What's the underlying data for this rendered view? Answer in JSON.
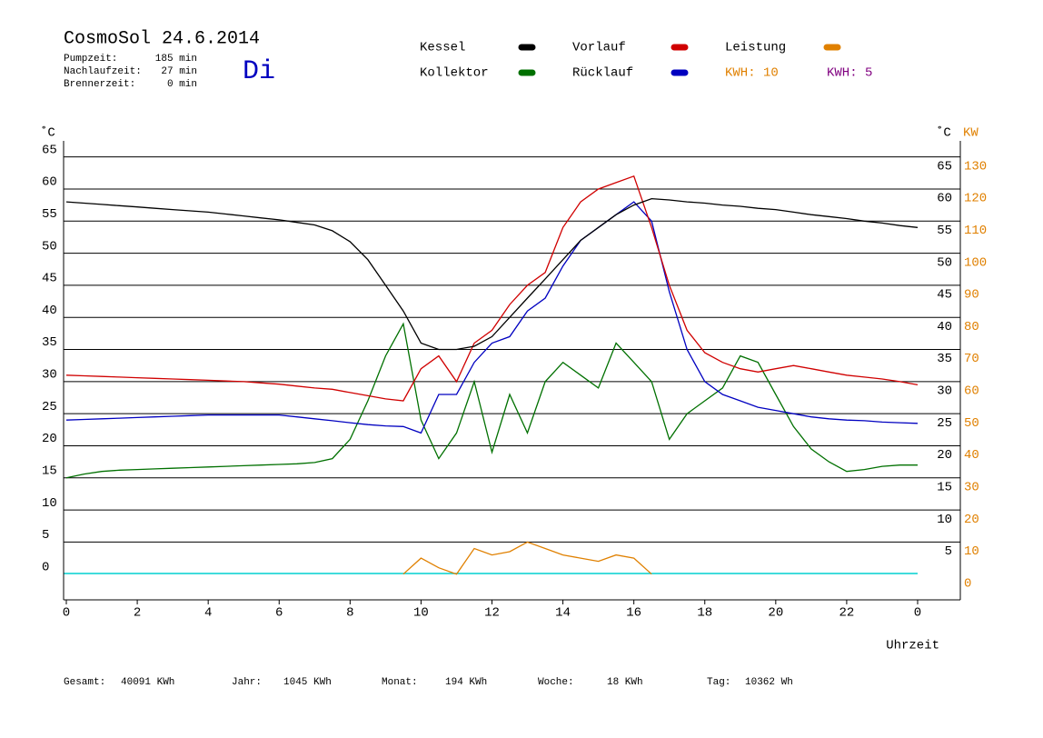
{
  "chart_data": {
    "type": "line",
    "title": "CosmoSol 24.6.2014",
    "ylabel": "˚C",
    "y2label": "KW",
    "y2label_unit": "˚C",
    "xlabel": "Uhrzeit",
    "annotations": [
      {
        "text": "KWH: 10",
        "color": "#e08000"
      },
      {
        "text": "KWH: 5",
        "color": "#800080"
      }
    ],
    "x": [
      0,
      0.5,
      1,
      1.5,
      2,
      2.5,
      3,
      3.5,
      4,
      4.5,
      5,
      5.5,
      6,
      6.5,
      7,
      7.5,
      8,
      8.5,
      9,
      9.5,
      10,
      10.5,
      11,
      11.5,
      12,
      12.5,
      13,
      13.5,
      14,
      14.5,
      15,
      15.5,
      16,
      16.5,
      17,
      17.5,
      18,
      18.5,
      19,
      19.5,
      20,
      20.5,
      21,
      21.5,
      22,
      22.5,
      23,
      23.5,
      24
    ],
    "series": [
      {
        "name": "Kessel",
        "color": "#000000",
        "values": [
          58,
          57.8,
          57.6,
          57.4,
          57.2,
          57,
          56.8,
          56.6,
          56.4,
          56.1,
          55.8,
          55.5,
          55.2,
          54.8,
          54.4,
          53.5,
          51.8,
          49,
          45,
          41,
          36,
          35,
          35,
          35.5,
          37,
          40,
          43,
          46,
          49,
          52,
          54,
          56,
          57.5,
          58.5,
          58.3,
          58,
          57.8,
          57.5,
          57.3,
          57,
          56.8,
          56.4,
          56,
          55.7,
          55.4,
          55,
          54.7,
          54.3,
          54
        ]
      },
      {
        "name": "Kollektor",
        "color": "#007000",
        "values": [
          15,
          15.6,
          16,
          16.2,
          16.3,
          16.4,
          16.5,
          16.6,
          16.7,
          16.8,
          16.9,
          17,
          17.1,
          17.2,
          17.4,
          18,
          21,
          27,
          34,
          39,
          24,
          18,
          22,
          30,
          19,
          28,
          22,
          30,
          33,
          31,
          29,
          36,
          33,
          30,
          21,
          25,
          27,
          29,
          34,
          33,
          28,
          23,
          19.5,
          17.5,
          16,
          16.3,
          16.8,
          17,
          17
        ]
      },
      {
        "name": "Vorlauf",
        "color": "#d00000",
        "values": [
          31,
          30.9,
          30.8,
          30.7,
          30.6,
          30.5,
          30.4,
          30.3,
          30.2,
          30.1,
          30,
          29.8,
          29.6,
          29.3,
          29,
          28.8,
          28.3,
          27.8,
          27.3,
          27,
          32,
          34,
          30,
          36,
          38,
          42,
          45,
          47,
          54,
          58,
          60,
          61,
          62,
          54,
          45,
          38,
          34.5,
          33,
          32,
          31.5,
          32,
          32.5,
          32,
          31.5,
          31,
          30.7,
          30.4,
          30,
          29.5
        ]
      },
      {
        "name": "Rücklauf",
        "color": "#0000c0",
        "values": [
          24,
          24.1,
          24.2,
          24.3,
          24.4,
          24.5,
          24.6,
          24.7,
          24.8,
          24.8,
          24.8,
          24.8,
          24.8,
          24.5,
          24.2,
          23.9,
          23.6,
          23.3,
          23.1,
          23,
          22,
          28,
          28,
          33,
          36,
          37,
          41,
          43,
          48,
          52,
          54,
          56,
          58,
          55,
          44,
          35,
          30,
          28,
          27,
          26,
          25.5,
          25,
          24.5,
          24.2,
          24,
          23.9,
          23.7,
          23.6,
          23.5
        ]
      },
      {
        "name": "Leistung",
        "color": "#e08000",
        "axis": "y2",
        "values": [
          null,
          null,
          null,
          null,
          null,
          null,
          null,
          null,
          null,
          null,
          null,
          null,
          null,
          null,
          null,
          null,
          null,
          null,
          null,
          0,
          5,
          2,
          0,
          8,
          6,
          7,
          10,
          8,
          6,
          5,
          4,
          6,
          5,
          0,
          null,
          null,
          null,
          null,
          null,
          null,
          null,
          null,
          null,
          null,
          null,
          null,
          null,
          null,
          null
        ]
      }
    ],
    "xlim": [
      0,
      24
    ],
    "xticks": [
      0,
      2,
      4,
      6,
      8,
      10,
      12,
      14,
      16,
      18,
      20,
      22,
      {
        "value": 24,
        "label": "0"
      }
    ],
    "ylim": [
      -4,
      67.5
    ],
    "yticks": [
      0,
      5,
      10,
      15,
      20,
      25,
      30,
      35,
      40,
      45,
      50,
      55,
      60,
      65
    ],
    "y2lim": [
      -8,
      135
    ],
    "y2ticks": [
      0,
      10,
      20,
      30,
      40,
      50,
      60,
      70,
      80,
      90,
      100,
      110,
      120,
      130
    ],
    "grid": true
  },
  "day": "Di",
  "info": [
    {
      "label": "Pumpzeit:",
      "value": "185 min"
    },
    {
      "label": "Nachlaufzeit:",
      "value": "27 min"
    },
    {
      "label": "Brennerzeit:",
      "value": "0 min"
    }
  ],
  "footer": [
    {
      "label": "Gesamt:",
      "value": "40091 KWh"
    },
    {
      "label": "Jahr:",
      "value": "1045 KWh"
    },
    {
      "label": "Monat:",
      "value": "194 KWh"
    },
    {
      "label": "Woche:",
      "value": "18 KWh"
    },
    {
      "label": "Tag:",
      "value": "10362 Wh"
    }
  ]
}
